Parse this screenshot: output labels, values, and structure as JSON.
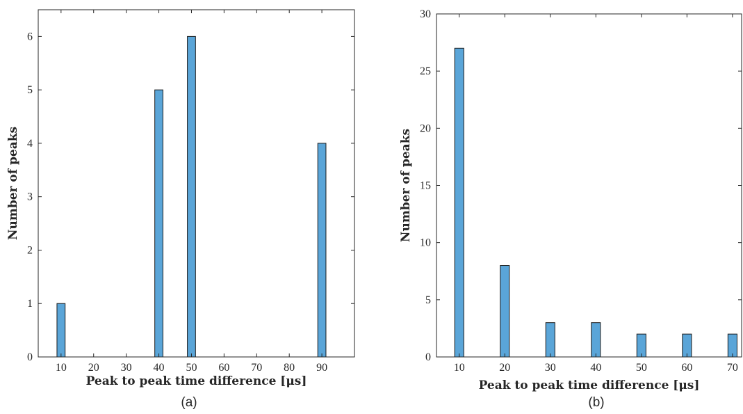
{
  "chart_data": [
    {
      "type": "bar",
      "panel_label": "(a)",
      "x_ticks": [
        10,
        20,
        30,
        40,
        50,
        60,
        70,
        80,
        90
      ],
      "y_ticks": [
        0,
        1,
        2,
        3,
        4,
        5,
        6
      ],
      "xlim": [
        3,
        100
      ],
      "ylim": [
        0,
        6.5
      ],
      "x": [
        10,
        40,
        50,
        90
      ],
      "values": [
        1,
        5,
        6,
        4
      ],
      "bar_width": 2.5,
      "xlabel": "Peak to peak time difference [μs]",
      "ylabel": "Number of peaks",
      "grid": false
    },
    {
      "type": "bar",
      "panel_label": "(b)",
      "x_ticks": [
        10,
        20,
        30,
        40,
        50,
        60,
        70
      ],
      "y_ticks": [
        0,
        5,
        10,
        15,
        20,
        25,
        30
      ],
      "xlim": [
        5,
        72
      ],
      "ylim": [
        0,
        30
      ],
      "x": [
        10,
        20,
        30,
        40,
        50,
        60,
        70
      ],
      "values": [
        27,
        8,
        3,
        3,
        2,
        2,
        2
      ],
      "bar_width": 2,
      "xlabel": "Peak to peak time difference [μs]",
      "ylabel": "Number of peaks",
      "grid": false
    }
  ]
}
